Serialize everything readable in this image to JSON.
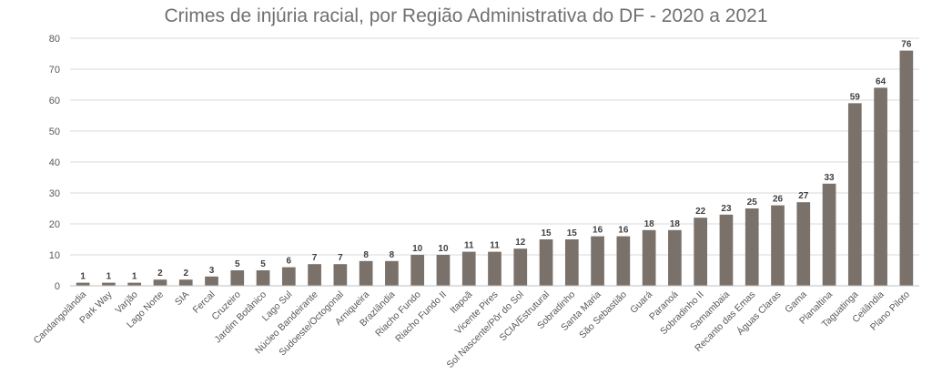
{
  "chart_data": {
    "type": "bar",
    "title": "Crimes de injúria racial, por Região Administrativa do DF - 2020 a 2021",
    "xlabel": "",
    "ylabel": "",
    "ylim": [
      0,
      80
    ],
    "yticks": [
      0,
      10,
      20,
      30,
      40,
      50,
      60,
      70,
      80
    ],
    "grid": true,
    "legend": "none",
    "bar_color": "#7a716b",
    "categories": [
      "Candangolândia",
      "Park Way",
      "Varjão",
      "Lago Norte",
      "SIA",
      "Fercal",
      "Cruzeiro",
      "Jardim Botânico",
      "Lago Sul",
      "Núcleo Bandeirante",
      "Sudoeste/Octogonal",
      "Arniqueira",
      "Brazlândia",
      "Riacho Fundo",
      "Riacho Fundo II",
      "Itapoã",
      "Vicente Pires",
      "Sol Nascente/Pôr do Sol",
      "SCIA/Estrutural",
      "Sobradinho",
      "Santa Maria",
      "São Sebastião",
      "Guará",
      "Paranoá",
      "Sobradinho II",
      "Samambaia",
      "Recanto das Emas",
      "Águas Claras",
      "Gama",
      "Planaltina",
      "Taguatinga",
      "Ceilândia",
      "Plano Piloto"
    ],
    "values": [
      1,
      1,
      1,
      2,
      2,
      3,
      5,
      5,
      6,
      7,
      7,
      8,
      8,
      10,
      10,
      11,
      11,
      12,
      15,
      15,
      16,
      16,
      18,
      18,
      22,
      23,
      25,
      26,
      27,
      33,
      59,
      64,
      76
    ]
  }
}
